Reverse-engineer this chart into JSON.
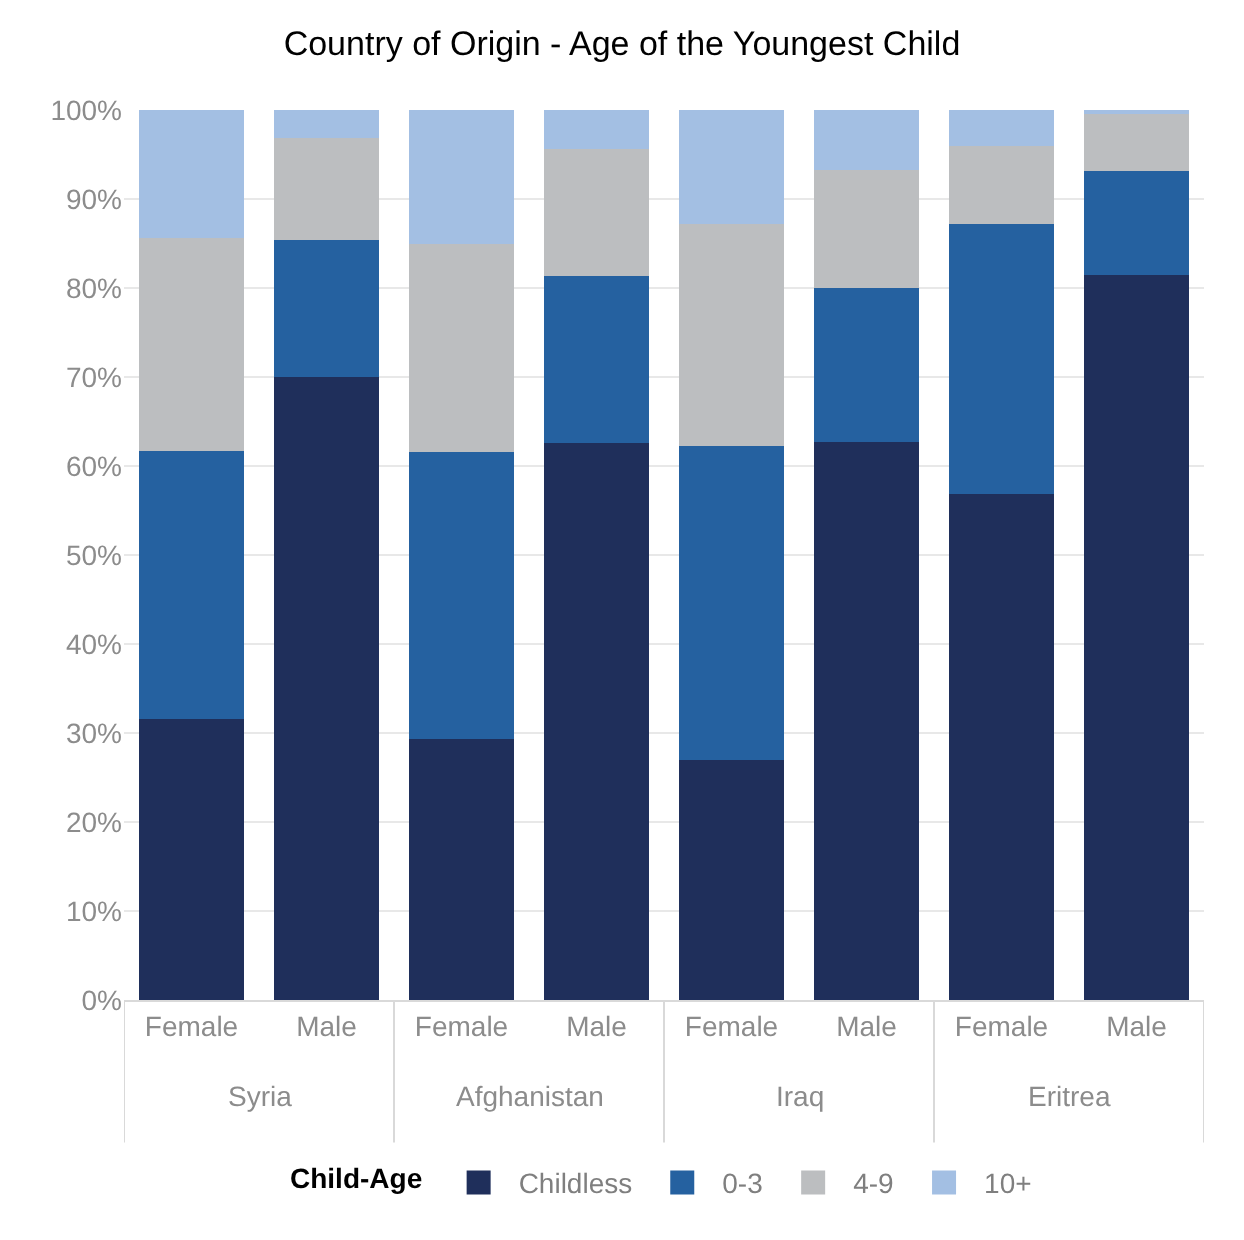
{
  "chart_data": {
    "type": "bar",
    "title": "Country of Origin - Age of the Youngest Child",
    "stacked": true,
    "categories": [
      "Female",
      "Male",
      "Female",
      "Male",
      "Female",
      "Male",
      "Female",
      "Male"
    ],
    "annotations": [
      "Syria",
      "Afghanistan",
      "Iraq",
      "Eritrea"
    ],
    "series": [
      {
        "name": "Childless",
        "color": "#1f2f5b",
        "values": [
          31.6,
          70.0,
          29.3,
          62.6,
          27.0,
          62.7,
          56.9,
          81.5
        ]
      },
      {
        "name": "0-3",
        "color": "#2561a0",
        "values": [
          30.1,
          15.4,
          32.3,
          18.8,
          35.2,
          17.3,
          30.3,
          11.6
        ]
      },
      {
        "name": "4-9",
        "color": "#bcbec0",
        "values": [
          23.9,
          11.5,
          23.4,
          14.2,
          25.0,
          13.3,
          8.7,
          6.5
        ]
      },
      {
        "name": "10+",
        "color": "#a3bfe3",
        "values": [
          14.4,
          3.1,
          15.0,
          4.4,
          12.8,
          6.7,
          4.1,
          0.4
        ]
      }
    ],
    "legend_title": "Child-Age",
    "legend": "bottom",
    "grid": "y",
    "ylim": [
      0,
      100
    ],
    "yticks": [
      {
        "value": 0,
        "label": "0%"
      },
      {
        "value": 10,
        "label": "10%"
      },
      {
        "value": 20,
        "label": "20%"
      },
      {
        "value": 30,
        "label": "30%"
      },
      {
        "value": 40,
        "label": "40%"
      },
      {
        "value": 50,
        "label": "50%"
      },
      {
        "value": 60,
        "label": "60%"
      },
      {
        "value": 70,
        "label": "70%"
      },
      {
        "value": 80,
        "label": "80%"
      },
      {
        "value": 90,
        "label": "90%"
      },
      {
        "value": 100,
        "label": "100%"
      }
    ]
  }
}
